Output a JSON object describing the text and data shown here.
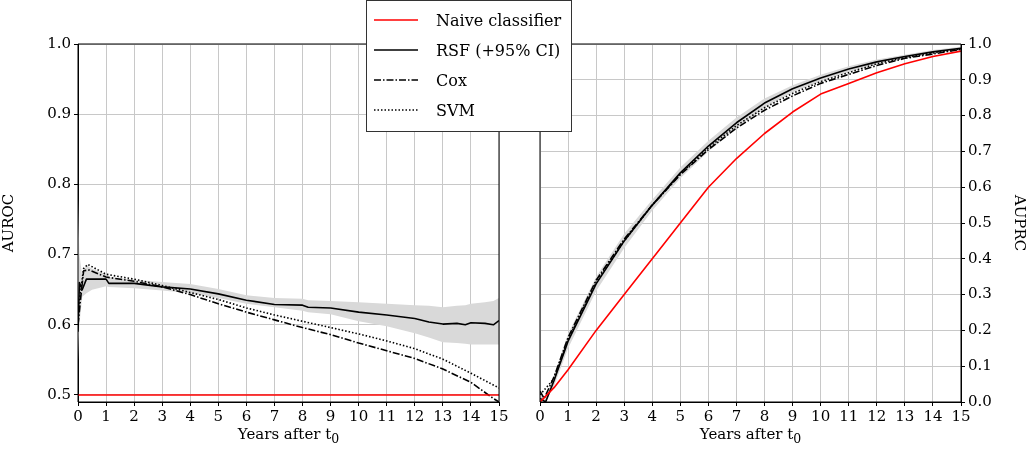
{
  "chart_data": [
    {
      "type": "line",
      "xlabel": "Years after t$_{0}$",
      "ylabel": "AUROC",
      "xlim": [
        0,
        15
      ],
      "ylim": [
        0.49,
        1.0
      ],
      "xticks": [
        0,
        1,
        2,
        3,
        4,
        5,
        6,
        7,
        8,
        9,
        10,
        11,
        12,
        13,
        14,
        15
      ],
      "yticks": [
        {
          "value": 0.5,
          "label": "0.5"
        },
        {
          "value": 0.6,
          "label": "0.6"
        },
        {
          "value": 0.7,
          "label": "0.7"
        },
        {
          "value": 0.8,
          "label": "0.8"
        },
        {
          "value": 0.9,
          "label": "0.9"
        },
        {
          "value": 1.0,
          "label": "1.0"
        }
      ],
      "grid": true,
      "legend": "top right",
      "marker": "none",
      "series": [
        {
          "name": "Naive classifier",
          "color": "#ff0000",
          "line_style": "solid",
          "x": [
            0,
            15
          ],
          "values": [
            0.5,
            0.5
          ]
        },
        {
          "name": "RSF (+95% CI)",
          "color": "#000000",
          "line_style": "solid",
          "x": [
            0,
            0.05,
            0.15,
            0.3,
            0.5,
            1,
            1.1,
            2,
            3,
            4,
            5,
            6,
            7,
            8,
            8.2,
            9,
            10,
            11,
            12,
            12.5,
            13,
            13.5,
            13.8,
            14,
            14.5,
            14.8,
            15
          ],
          "values": [
            0.59,
            0.66,
            0.65,
            0.665,
            0.665,
            0.665,
            0.659,
            0.659,
            0.654,
            0.651,
            0.644,
            0.635,
            0.629,
            0.628,
            0.625,
            0.624,
            0.618,
            0.614,
            0.609,
            0.604,
            0.601,
            0.602,
            0.6,
            0.603,
            0.602,
            0.6,
            0.606
          ],
          "lower": [
            0.55,
            0.6,
            0.64,
            0.645,
            0.65,
            0.655,
            0.654,
            0.652,
            0.649,
            0.645,
            0.638,
            0.63,
            0.625,
            0.62,
            0.618,
            0.615,
            0.605,
            0.598,
            0.588,
            0.582,
            0.575,
            0.574,
            0.573,
            0.572,
            0.572,
            0.572,
            0.572
          ],
          "upper": [
            0.78,
            0.7,
            0.67,
            0.685,
            0.68,
            0.672,
            0.668,
            0.664,
            0.661,
            0.658,
            0.651,
            0.642,
            0.638,
            0.637,
            0.635,
            0.634,
            0.632,
            0.63,
            0.628,
            0.627,
            0.625,
            0.627,
            0.628,
            0.63,
            0.632,
            0.634,
            0.638
          ]
        },
        {
          "name": "Cox",
          "color": "#000000",
          "line_style": "dashed",
          "x": [
            0,
            0.1,
            0.2,
            0.4,
            1,
            2,
            3,
            4,
            5,
            6,
            7,
            8,
            9,
            10,
            11,
            12,
            13,
            14,
            14.8,
            15
          ],
          "values": [
            0.6,
            0.64,
            0.677,
            0.678,
            0.668,
            0.662,
            0.654,
            0.643,
            0.63,
            0.618,
            0.607,
            0.596,
            0.586,
            0.574,
            0.563,
            0.552,
            0.537,
            0.518,
            0.495,
            0.49
          ]
        },
        {
          "name": "SVM",
          "color": "#000000",
          "line_style": "dotted",
          "x": [
            0,
            0.1,
            0.2,
            0.35,
            1,
            2,
            3,
            4,
            5,
            6,
            7,
            8,
            9,
            10,
            11,
            12,
            13,
            14,
            15
          ],
          "values": [
            0.62,
            0.65,
            0.68,
            0.686,
            0.672,
            0.665,
            0.656,
            0.646,
            0.636,
            0.624,
            0.614,
            0.605,
            0.596,
            0.587,
            0.577,
            0.566,
            0.551,
            0.531,
            0.51
          ]
        }
      ]
    },
    {
      "type": "line",
      "xlabel": "Years after t$_{0}$",
      "ylabel": "AUPRC",
      "xlim": [
        0,
        15
      ],
      "ylim": [
        0,
        1.0
      ],
      "xticks": [
        0,
        1,
        2,
        3,
        4,
        5,
        6,
        7,
        8,
        9,
        10,
        11,
        12,
        13,
        14,
        15
      ],
      "yticks": [
        {
          "value": 0,
          "label": "0.0"
        },
        {
          "value": 0.1,
          "label": "0.1"
        },
        {
          "value": 0.2,
          "label": "0.2"
        },
        {
          "value": 0.3,
          "label": "0.3"
        },
        {
          "value": 0.4,
          "label": "0.4"
        },
        {
          "value": 0.5,
          "label": "0.5"
        },
        {
          "value": 0.6,
          "label": "0.6"
        },
        {
          "value": 0.7,
          "label": "0.7"
        },
        {
          "value": 0.8,
          "label": "0.8"
        },
        {
          "value": 0.9,
          "label": "0.9"
        },
        {
          "value": 1.0,
          "label": "1.0"
        }
      ],
      "grid": true,
      "legend": "top left",
      "marker": "none",
      "series": [
        {
          "name": "Naive classifier",
          "color": "#ff0000",
          "line_style": "solid",
          "x": [
            0,
            0.5,
            1,
            2,
            3,
            4,
            5,
            6,
            7,
            8,
            9,
            10,
            11,
            12,
            13,
            14,
            15
          ],
          "values": [
            0,
            0.04,
            0.09,
            0.2,
            0.3,
            0.4,
            0.5,
            0.6,
            0.68,
            0.75,
            0.81,
            0.86,
            0.89,
            0.92,
            0.945,
            0.965,
            0.98
          ]
        },
        {
          "name": "RSF (+95% CI)",
          "color": "#000000",
          "line_style": "solid",
          "x": [
            0,
            0.2,
            0.5,
            1,
            2,
            3,
            4,
            5,
            6,
            7,
            8,
            9,
            10,
            11,
            12,
            13,
            14,
            15
          ],
          "values": [
            0.01,
            0,
            0.06,
            0.17,
            0.33,
            0.45,
            0.55,
            0.64,
            0.715,
            0.78,
            0.835,
            0.875,
            0.905,
            0.93,
            0.95,
            0.965,
            0.978,
            0.988
          ],
          "lower": [
            0,
            0,
            0.045,
            0.15,
            0.31,
            0.43,
            0.535,
            0.625,
            0.7,
            0.765,
            0.822,
            0.865,
            0.896,
            0.922,
            0.943,
            0.96,
            0.973,
            0.984
          ],
          "upper": [
            0.02,
            0.01,
            0.075,
            0.19,
            0.35,
            0.47,
            0.565,
            0.655,
            0.73,
            0.795,
            0.848,
            0.885,
            0.914,
            0.938,
            0.957,
            0.97,
            0.983,
            0.992
          ]
        },
        {
          "name": "Cox",
          "color": "#000000",
          "line_style": "dashed",
          "x": [
            0,
            0.15,
            0.5,
            1,
            2,
            3,
            4,
            5,
            6,
            7,
            8,
            9,
            10,
            11,
            12,
            13,
            14,
            15
          ],
          "values": [
            0.03,
            0.01,
            0.07,
            0.18,
            0.34,
            0.455,
            0.55,
            0.635,
            0.705,
            0.765,
            0.815,
            0.855,
            0.89,
            0.915,
            0.94,
            0.96,
            0.972,
            0.985
          ]
        },
        {
          "name": "SVM",
          "color": "#000000",
          "line_style": "dotted",
          "x": [
            0,
            0.5,
            1,
            2,
            3,
            4,
            5,
            6,
            7,
            8,
            9,
            10,
            11,
            12,
            13,
            14,
            15
          ],
          "values": [
            0.02,
            0.065,
            0.175,
            0.335,
            0.45,
            0.55,
            0.637,
            0.71,
            0.772,
            0.822,
            0.862,
            0.895,
            0.92,
            0.945,
            0.962,
            0.975,
            0.986
          ]
        }
      ]
    }
  ]
}
